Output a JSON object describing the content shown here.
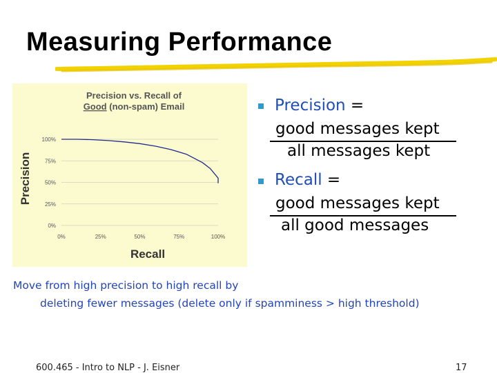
{
  "slide": {
    "title": "Measuring Performance",
    "accent_color": "#f0d000",
    "bullets": [
      {
        "term": "Precision",
        "equals": " =",
        "numerator": "good messages kept",
        "denominator": "all messages kept"
      },
      {
        "term": "Recall",
        "equals": " =",
        "numerator": "good messages kept",
        "denominator": "all good messages"
      }
    ],
    "note_line1": "Move from high precision to high recall by",
    "note_line2": "deleting fewer messages (delete only if spamminess > high threshold)",
    "footer_left": "600.465 - Intro to NLP - J. Eisner",
    "footer_right": "17"
  },
  "chart_data": {
    "type": "line",
    "title_line1": "Precision vs. Recall of",
    "title_line2_underlined": "Good",
    "title_line2_rest": " (non-spam) Email",
    "xlabel": "Recall",
    "ylabel": "Precision",
    "xlim": [
      0,
      100
    ],
    "ylim": [
      0,
      100
    ],
    "x_ticks": [
      "0%",
      "25%",
      "50%",
      "75%",
      "100%"
    ],
    "y_ticks": [
      "0%",
      "25%",
      "50%",
      "75%",
      "100%"
    ],
    "line_color": "#1f2a8c",
    "background": "#fbfbcf",
    "series": [
      {
        "x": [
          0,
          10,
          20,
          30,
          40,
          50,
          60,
          70,
          80,
          90,
          95,
          100,
          100
        ],
        "y": [
          100,
          100,
          99.5,
          98.5,
          97,
          95,
          92,
          88,
          82.5,
          73,
          66,
          55,
          49
        ]
      }
    ]
  }
}
